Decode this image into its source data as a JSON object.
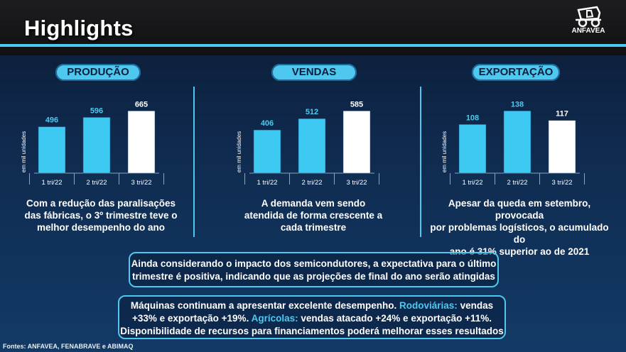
{
  "header": {
    "title": "Highlights",
    "logo_text": "ANFAVEA"
  },
  "colors": {
    "accent": "#4fc8f0",
    "highlight_bar": "#ffffff",
    "bar": "#3ec9f2"
  },
  "panels": [
    {
      "label": "PRODUÇÃO",
      "description_lines": [
        "Com a redução das paralisações",
        "das fábricas, o 3º trimestre teve o",
        "melhor desempenho do ano"
      ]
    },
    {
      "label": "VENDAS",
      "description_lines": [
        "A demanda vem sendo",
        "atendida de forma crescente a",
        "cada trimestre"
      ]
    },
    {
      "label": "EXPORTAÇÃO",
      "description_lines": [
        "Apesar da queda em setembro, provocada",
        "por problemas logísticos, o acumulado do",
        "ano é 31% superior ao de 2021"
      ]
    }
  ],
  "chart_data": [
    {
      "type": "bar",
      "title": "PRODUÇÃO",
      "ylabel": "em mil unidades",
      "categories": [
        "1 tri/22",
        "2 tri/22",
        "3 tri/22"
      ],
      "values": [
        496,
        596,
        665
      ],
      "highlight_index": 2
    },
    {
      "type": "bar",
      "title": "VENDAS",
      "ylabel": "em mil unidades",
      "categories": [
        "1 tri/22",
        "2 tri/22",
        "3 tri/22"
      ],
      "values": [
        406,
        512,
        585
      ],
      "highlight_index": 2
    },
    {
      "type": "bar",
      "title": "EXPORTAÇÃO",
      "ylabel": "em mil unidades",
      "categories": [
        "1 tri/22",
        "2 tri/22",
        "3 tri/22"
      ],
      "values": [
        108,
        138,
        117
      ],
      "highlight_index": 2
    }
  ],
  "box1": {
    "lines": [
      "Ainda considerando o impacto dos semicondutores, a expectativa para o último",
      "trimestre é positiva, indicando que as projeções de final do ano serão atingidas"
    ]
  },
  "box2": {
    "line1_a": "Máquinas continuam a apresentar excelente desempenho. ",
    "line1_hl": "Rodoviárias:",
    "line1_b": " vendas",
    "line2_a": "+33% e exportação +19%. ",
    "line2_hl": "Agrícolas:",
    "line2_b": " vendas atacado +24% e exportação +11%.",
    "line3": "Disponibilidade de recursos para financiamentos poderá melhorar esses resultados"
  },
  "footer": {
    "sources": "Fontes: ANFAVEA, FENABRAVE e ABIMAQ"
  }
}
